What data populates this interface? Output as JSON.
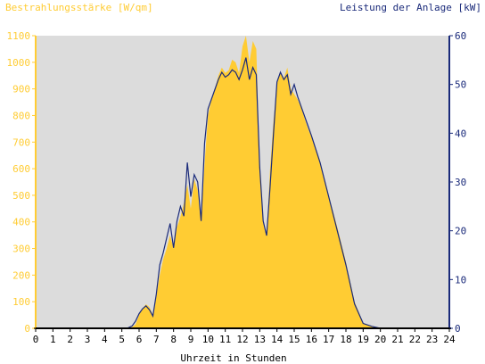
{
  "chart_data": {
    "type": "area",
    "title": "",
    "xlabel": "Uhrzeit in Stunden",
    "ylabel_left": "Bestrahlungsstärke [W/qm]",
    "ylabel_right": "Leistung der Anlage [kW]",
    "xlim": [
      0,
      24
    ],
    "ylim_left": [
      0,
      1100
    ],
    "ylim_right": [
      0,
      60
    ],
    "x_ticks": [
      0,
      1,
      2,
      3,
      4,
      5,
      6,
      7,
      8,
      9,
      10,
      11,
      12,
      13,
      14,
      15,
      16,
      17,
      18,
      19,
      20,
      21,
      22,
      23,
      24
    ],
    "y_ticks_left": [
      0,
      100,
      200,
      300,
      400,
      500,
      600,
      700,
      800,
      900,
      1000,
      1100
    ],
    "y_ticks_right": [
      0,
      10,
      20,
      30,
      40,
      50,
      60
    ],
    "grid": false,
    "colors": {
      "irradiance": "#ffcc33",
      "power": "#1a2a7a",
      "plot_background": "#dcdcdc",
      "left_axis_text": "#ffcc33",
      "right_axis_text": "#1a2a7a",
      "axis_title_right": "#1a2a7a",
      "x_axis_text": "#000000"
    },
    "series": [
      {
        "name": "Bestrahlungsstärke [W/qm]",
        "axis": "left",
        "kind": "area",
        "x": [
          0,
          5.3,
          5.6,
          5.8,
          6.0,
          6.2,
          6.4,
          6.6,
          6.8,
          7.0,
          7.2,
          7.4,
          7.6,
          7.8,
          8.0,
          8.2,
          8.4,
          8.6,
          8.8,
          9.0,
          9.2,
          9.4,
          9.6,
          9.8,
          10.0,
          10.2,
          10.4,
          10.6,
          10.8,
          11.0,
          11.2,
          11.4,
          11.6,
          11.8,
          12.0,
          12.2,
          12.4,
          12.6,
          12.8,
          13.0,
          13.2,
          13.4,
          13.6,
          13.8,
          14.0,
          14.2,
          14.4,
          14.6,
          14.8,
          15.0,
          15.2,
          15.4,
          15.6,
          15.8,
          16.0,
          16.5,
          17.0,
          17.5,
          18.0,
          18.5,
          19.0,
          19.5,
          20.0,
          24
        ],
        "values": [
          0,
          0,
          5,
          15,
          50,
          75,
          90,
          80,
          50,
          120,
          200,
          260,
          300,
          350,
          300,
          380,
          420,
          470,
          540,
          450,
          560,
          520,
          400,
          620,
          800,
          860,
          900,
          950,
          980,
          960,
          970,
          1010,
          1000,
          960,
          1060,
          1100,
          1000,
          1080,
          1050,
          620,
          400,
          350,
          600,
          780,
          920,
          960,
          940,
          980,
          900,
          880,
          860,
          830,
          790,
          750,
          720,
          620,
          500,
          380,
          250,
          100,
          20,
          8,
          0,
          0
        ]
      },
      {
        "name": "Leistung der Anlage [kW]",
        "axis": "right",
        "kind": "line",
        "x": [
          0,
          5.3,
          5.6,
          5.8,
          6.0,
          6.2,
          6.4,
          6.6,
          6.8,
          7.0,
          7.2,
          7.4,
          7.6,
          7.8,
          8.0,
          8.2,
          8.4,
          8.6,
          8.8,
          9.0,
          9.2,
          9.4,
          9.6,
          9.8,
          10.0,
          10.2,
          10.4,
          10.6,
          10.8,
          11.0,
          11.2,
          11.4,
          11.6,
          11.8,
          12.0,
          12.2,
          12.4,
          12.6,
          12.8,
          13.0,
          13.2,
          13.4,
          13.6,
          13.8,
          14.0,
          14.2,
          14.4,
          14.6,
          14.8,
          15.0,
          15.2,
          15.4,
          15.6,
          15.8,
          16.0,
          16.5,
          17.0,
          17.5,
          18.0,
          18.5,
          19.0,
          19.5,
          20.0,
          24
        ],
        "values": [
          0,
          0,
          0.5,
          1.5,
          3.0,
          4.0,
          4.6,
          3.8,
          2.5,
          7.0,
          13.0,
          15.5,
          18.5,
          21.5,
          16.5,
          22.0,
          25.0,
          23.0,
          34.0,
          27.0,
          31.5,
          30.0,
          22.0,
          38.0,
          45.0,
          47.0,
          49.0,
          51.0,
          52.5,
          51.5,
          52.0,
          53.0,
          52.5,
          51.0,
          53.0,
          55.5,
          51.0,
          53.5,
          52.0,
          33.0,
          22.0,
          19.0,
          29.0,
          40.0,
          50.5,
          52.5,
          51.0,
          52.0,
          48.0,
          50.0,
          47.5,
          45.5,
          43.5,
          41.5,
          39.5,
          34.0,
          27.0,
          20.0,
          13.0,
          5.0,
          1.0,
          0.4,
          0,
          0
        ]
      }
    ]
  }
}
